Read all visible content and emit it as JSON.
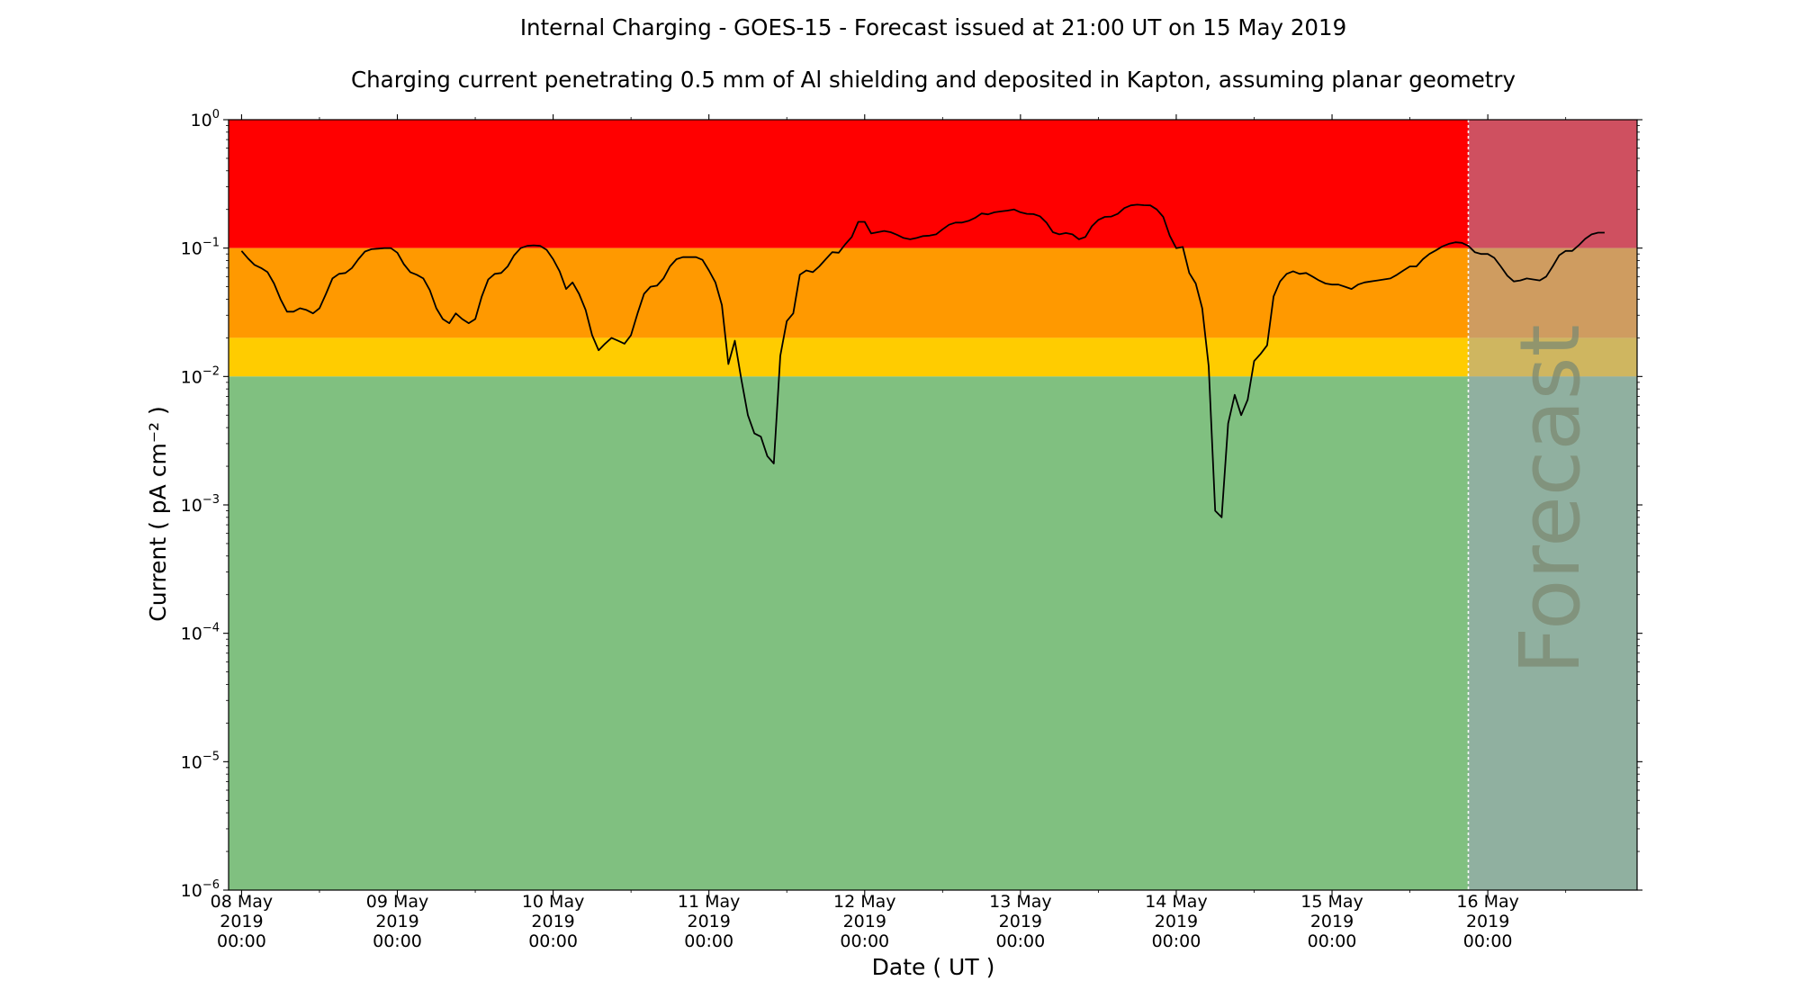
{
  "chart_data": {
    "type": "line",
    "title": "Internal Charging - GOES-15 - Forecast issued at 21:00 UT on 15 May 2019",
    "subtitle": "Charging current penetrating 0.5 mm of Al shielding and deposited in Kapton, assuming planar geometry",
    "xlabel": "Date ( UT )",
    "ylabel": "Current ( pA cm⁻² )",
    "yscale": "log",
    "ylim": [
      1e-06,
      1
    ],
    "y_ticks": [
      {
        "value": 1,
        "base": "10",
        "exp": "0"
      },
      {
        "value": 0.1,
        "base": "10",
        "exp": "−1"
      },
      {
        "value": 0.01,
        "base": "10",
        "exp": "−2"
      },
      {
        "value": 0.001,
        "base": "10",
        "exp": "−3"
      },
      {
        "value": 0.0001,
        "base": "10",
        "exp": "−4"
      },
      {
        "value": 1e-05,
        "base": "10",
        "exp": "−5"
      },
      {
        "value": 1e-06,
        "base": "10",
        "exp": "−6"
      }
    ],
    "xlim": [
      "2019-05-07 22:00",
      "2019-05-16 23:00"
    ],
    "x_ticks": [
      {
        "value": "2019-05-08 00:00",
        "lines": [
          "08 May",
          "2019",
          "00:00"
        ]
      },
      {
        "value": "2019-05-09 00:00",
        "lines": [
          "09 May",
          "2019",
          "00:00"
        ]
      },
      {
        "value": "2019-05-10 00:00",
        "lines": [
          "10 May",
          "2019",
          "00:00"
        ]
      },
      {
        "value": "2019-05-11 00:00",
        "lines": [
          "11 May",
          "2019",
          "00:00"
        ]
      },
      {
        "value": "2019-05-12 00:00",
        "lines": [
          "12 May",
          "2019",
          "00:00"
        ]
      },
      {
        "value": "2019-05-13 00:00",
        "lines": [
          "13 May",
          "2019",
          "00:00"
        ]
      },
      {
        "value": "2019-05-14 00:00",
        "lines": [
          "14 May",
          "2019",
          "00:00"
        ]
      },
      {
        "value": "2019-05-15 00:00",
        "lines": [
          "15 May",
          "2019",
          "00:00"
        ]
      },
      {
        "value": "2019-05-16 00:00",
        "lines": [
          "16 May",
          "2019",
          "00:00"
        ]
      }
    ],
    "minor_x_ticks": [
      "2019-05-08 12:00",
      "2019-05-09 12:00",
      "2019-05-10 12:00",
      "2019-05-11 12:00",
      "2019-05-12 12:00",
      "2019-05-13 12:00",
      "2019-05-14 12:00",
      "2019-05-15 12:00",
      "2019-05-16 12:00"
    ],
    "bands": [
      {
        "from": 0.1,
        "to": 1,
        "color": "#ff0000"
      },
      {
        "from": 0.02,
        "to": 0.1,
        "color": "#ff9900"
      },
      {
        "from": 0.01,
        "to": 0.02,
        "color": "#ffcc00"
      },
      {
        "from": 1e-06,
        "to": 0.01,
        "color": "#80c080"
      }
    ],
    "forecast_region": {
      "start": "2019-05-15 21:00",
      "end": "2019-05-16 23:00",
      "label": "Forecast",
      "overlay_color": "#a0a0c0"
    },
    "series": [
      {
        "color": "#000000",
        "points": [
          [
            "2019-05-08 00:00",
            0.095
          ],
          [
            "2019-05-08 01:00",
            0.083
          ],
          [
            "2019-05-08 02:00",
            0.074
          ],
          [
            "2019-05-08 03:00",
            0.07
          ],
          [
            "2019-05-08 04:00",
            0.065
          ],
          [
            "2019-05-08 05:00",
            0.053
          ],
          [
            "2019-05-08 06:00",
            0.04
          ],
          [
            "2019-05-08 07:00",
            0.032
          ],
          [
            "2019-05-08 08:00",
            0.032
          ],
          [
            "2019-05-08 09:00",
            0.034
          ],
          [
            "2019-05-08 10:00",
            0.033
          ],
          [
            "2019-05-08 11:00",
            0.031
          ],
          [
            "2019-05-08 12:00",
            0.034
          ],
          [
            "2019-05-08 13:00",
            0.044
          ],
          [
            "2019-05-08 14:00",
            0.058
          ],
          [
            "2019-05-08 15:00",
            0.063
          ],
          [
            "2019-05-08 16:00",
            0.064
          ],
          [
            "2019-05-08 17:00",
            0.07
          ],
          [
            "2019-05-08 18:00",
            0.082
          ],
          [
            "2019-05-08 19:00",
            0.094
          ],
          [
            "2019-05-08 20:00",
            0.098
          ],
          [
            "2019-05-08 21:00",
            0.099
          ],
          [
            "2019-05-08 22:00",
            0.1
          ],
          [
            "2019-05-08 23:00",
            0.1
          ],
          [
            "2019-05-09 00:00",
            0.092
          ],
          [
            "2019-05-09 01:00",
            0.075
          ],
          [
            "2019-05-09 02:00",
            0.065
          ],
          [
            "2019-05-09 03:00",
            0.062
          ],
          [
            "2019-05-09 04:00",
            0.058
          ],
          [
            "2019-05-09 05:00",
            0.047
          ],
          [
            "2019-05-09 06:00",
            0.034
          ],
          [
            "2019-05-09 07:00",
            0.028
          ],
          [
            "2019-05-09 08:00",
            0.026
          ],
          [
            "2019-05-09 09:00",
            0.031
          ],
          [
            "2019-05-09 10:00",
            0.028
          ],
          [
            "2019-05-09 11:00",
            0.026
          ],
          [
            "2019-05-09 12:00",
            0.028
          ],
          [
            "2019-05-09 13:00",
            0.042
          ],
          [
            "2019-05-09 14:00",
            0.057
          ],
          [
            "2019-05-09 15:00",
            0.063
          ],
          [
            "2019-05-09 16:00",
            0.064
          ],
          [
            "2019-05-09 17:00",
            0.072
          ],
          [
            "2019-05-09 18:00",
            0.088
          ],
          [
            "2019-05-09 19:00",
            0.1
          ],
          [
            "2019-05-09 20:00",
            0.104
          ],
          [
            "2019-05-09 21:00",
            0.105
          ],
          [
            "2019-05-09 22:00",
            0.104
          ],
          [
            "2019-05-09 23:00",
            0.097
          ],
          [
            "2019-05-10 00:00",
            0.082
          ],
          [
            "2019-05-10 01:00",
            0.066
          ],
          [
            "2019-05-10 02:00",
            0.048
          ],
          [
            "2019-05-10 03:00",
            0.054
          ],
          [
            "2019-05-10 04:00",
            0.044
          ],
          [
            "2019-05-10 05:00",
            0.033
          ],
          [
            "2019-05-10 06:00",
            0.021
          ],
          [
            "2019-05-10 07:00",
            0.016
          ],
          [
            "2019-05-10 08:00",
            0.018
          ],
          [
            "2019-05-10 09:00",
            0.02
          ],
          [
            "2019-05-10 10:00",
            0.019
          ],
          [
            "2019-05-10 11:00",
            0.018
          ],
          [
            "2019-05-10 12:00",
            0.021
          ],
          [
            "2019-05-10 13:00",
            0.031
          ],
          [
            "2019-05-10 14:00",
            0.044
          ],
          [
            "2019-05-10 15:00",
            0.05
          ],
          [
            "2019-05-10 16:00",
            0.051
          ],
          [
            "2019-05-10 17:00",
            0.058
          ],
          [
            "2019-05-10 18:00",
            0.072
          ],
          [
            "2019-05-10 19:00",
            0.082
          ],
          [
            "2019-05-10 20:00",
            0.085
          ],
          [
            "2019-05-10 21:00",
            0.085
          ],
          [
            "2019-05-10 22:00",
            0.085
          ],
          [
            "2019-05-10 23:00",
            0.081
          ],
          [
            "2019-05-11 00:00",
            0.067
          ],
          [
            "2019-05-11 01:00",
            0.054
          ],
          [
            "2019-05-11 02:00",
            0.036
          ],
          [
            "2019-05-11 03:00",
            0.0125
          ],
          [
            "2019-05-11 04:00",
            0.019
          ],
          [
            "2019-05-11 05:00",
            0.0095
          ],
          [
            "2019-05-11 06:00",
            0.005
          ],
          [
            "2019-05-11 07:00",
            0.0036
          ],
          [
            "2019-05-11 08:00",
            0.0034
          ],
          [
            "2019-05-11 09:00",
            0.0024
          ],
          [
            "2019-05-11 10:00",
            0.0021
          ],
          [
            "2019-05-11 11:00",
            0.0145
          ],
          [
            "2019-05-11 12:00",
            0.027
          ],
          [
            "2019-05-11 13:00",
            0.031
          ],
          [
            "2019-05-11 14:00",
            0.062
          ],
          [
            "2019-05-11 15:00",
            0.067
          ],
          [
            "2019-05-11 16:00",
            0.065
          ],
          [
            "2019-05-11 17:00",
            0.072
          ],
          [
            "2019-05-11 18:00",
            0.082
          ],
          [
            "2019-05-11 19:00",
            0.093
          ],
          [
            "2019-05-11 20:00",
            0.092
          ],
          [
            "2019-05-11 21:00",
            0.107
          ],
          [
            "2019-05-11 22:00",
            0.122
          ],
          [
            "2019-05-11 23:00",
            0.16
          ],
          [
            "2019-05-12 00:00",
            0.16
          ],
          [
            "2019-05-12 01:00",
            0.13
          ],
          [
            "2019-05-12 02:00",
            0.133
          ],
          [
            "2019-05-12 03:00",
            0.136
          ],
          [
            "2019-05-12 04:00",
            0.133
          ],
          [
            "2019-05-12 05:00",
            0.127
          ],
          [
            "2019-05-12 06:00",
            0.12
          ],
          [
            "2019-05-12 07:00",
            0.117
          ],
          [
            "2019-05-12 08:00",
            0.12
          ],
          [
            "2019-05-12 09:00",
            0.124
          ],
          [
            "2019-05-12 10:00",
            0.125
          ],
          [
            "2019-05-12 11:00",
            0.128
          ],
          [
            "2019-05-12 12:00",
            0.14
          ],
          [
            "2019-05-12 13:00",
            0.152
          ],
          [
            "2019-05-12 14:00",
            0.158
          ],
          [
            "2019-05-12 15:00",
            0.158
          ],
          [
            "2019-05-12 16:00",
            0.163
          ],
          [
            "2019-05-12 17:00",
            0.172
          ],
          [
            "2019-05-12 18:00",
            0.186
          ],
          [
            "2019-05-12 19:00",
            0.183
          ],
          [
            "2019-05-12 20:00",
            0.19
          ],
          [
            "2019-05-12 21:00",
            0.193
          ],
          [
            "2019-05-12 22:00",
            0.196
          ],
          [
            "2019-05-12 23:00",
            0.2
          ],
          [
            "2019-05-13 00:00",
            0.19
          ],
          [
            "2019-05-13 01:00",
            0.185
          ],
          [
            "2019-05-13 02:00",
            0.184
          ],
          [
            "2019-05-13 03:00",
            0.177
          ],
          [
            "2019-05-13 04:00",
            0.158
          ],
          [
            "2019-05-13 05:00",
            0.133
          ],
          [
            "2019-05-13 06:00",
            0.128
          ],
          [
            "2019-05-13 07:00",
            0.131
          ],
          [
            "2019-05-13 08:00",
            0.128
          ],
          [
            "2019-05-13 09:00",
            0.117
          ],
          [
            "2019-05-13 10:00",
            0.122
          ],
          [
            "2019-05-13 11:00",
            0.148
          ],
          [
            "2019-05-13 12:00",
            0.166
          ],
          [
            "2019-05-13 13:00",
            0.175
          ],
          [
            "2019-05-13 14:00",
            0.176
          ],
          [
            "2019-05-13 15:00",
            0.185
          ],
          [
            "2019-05-13 16:00",
            0.205
          ],
          [
            "2019-05-13 17:00",
            0.215
          ],
          [
            "2019-05-13 18:00",
            0.218
          ],
          [
            "2019-05-13 19:00",
            0.216
          ],
          [
            "2019-05-13 20:00",
            0.215
          ],
          [
            "2019-05-13 21:00",
            0.2
          ],
          [
            "2019-05-13 22:00",
            0.175
          ],
          [
            "2019-05-13 23:00",
            0.125
          ],
          [
            "2019-05-14 00:00",
            0.1
          ],
          [
            "2019-05-14 01:00",
            0.102
          ],
          [
            "2019-05-14 02:00",
            0.064
          ],
          [
            "2019-05-14 03:00",
            0.053
          ],
          [
            "2019-05-14 04:00",
            0.034
          ],
          [
            "2019-05-14 05:00",
            0.012
          ],
          [
            "2019-05-14 06:00",
            0.0009
          ],
          [
            "2019-05-14 07:00",
            0.0008
          ],
          [
            "2019-05-14 08:00",
            0.0043
          ],
          [
            "2019-05-14 09:00",
            0.0072
          ],
          [
            "2019-05-14 10:00",
            0.005
          ],
          [
            "2019-05-14 11:00",
            0.0066
          ],
          [
            "2019-05-14 12:00",
            0.0132
          ],
          [
            "2019-05-14 13:00",
            0.015
          ],
          [
            "2019-05-14 14:00",
            0.0175
          ],
          [
            "2019-05-14 15:00",
            0.042
          ],
          [
            "2019-05-14 16:00",
            0.055
          ],
          [
            "2019-05-14 17:00",
            0.063
          ],
          [
            "2019-05-14 18:00",
            0.066
          ],
          [
            "2019-05-14 19:00",
            0.063
          ],
          [
            "2019-05-14 20:00",
            0.064
          ],
          [
            "2019-05-14 21:00",
            0.06
          ],
          [
            "2019-05-14 22:00",
            0.056
          ],
          [
            "2019-05-14 23:00",
            0.053
          ],
          [
            "2019-05-15 00:00",
            0.052
          ],
          [
            "2019-05-15 01:00",
            0.052
          ],
          [
            "2019-05-15 02:00",
            0.05
          ],
          [
            "2019-05-15 03:00",
            0.048
          ],
          [
            "2019-05-15 04:00",
            0.052
          ],
          [
            "2019-05-15 05:00",
            0.054
          ],
          [
            "2019-05-15 06:00",
            0.055
          ],
          [
            "2019-05-15 07:00",
            0.056
          ],
          [
            "2019-05-15 08:00",
            0.057
          ],
          [
            "2019-05-15 09:00",
            0.058
          ],
          [
            "2019-05-15 10:00",
            0.062
          ],
          [
            "2019-05-15 11:00",
            0.067
          ],
          [
            "2019-05-15 12:00",
            0.072
          ],
          [
            "2019-05-15 13:00",
            0.072
          ],
          [
            "2019-05-15 14:00",
            0.082
          ],
          [
            "2019-05-15 15:00",
            0.09
          ],
          [
            "2019-05-15 16:00",
            0.096
          ],
          [
            "2019-05-15 17:00",
            0.103
          ],
          [
            "2019-05-15 18:00",
            0.108
          ],
          [
            "2019-05-15 19:00",
            0.111
          ],
          [
            "2019-05-15 20:00",
            0.11
          ],
          [
            "2019-05-15 21:00",
            0.104
          ],
          [
            "2019-05-15 22:00",
            0.093
          ],
          [
            "2019-05-15 23:00",
            0.09
          ],
          [
            "2019-05-16 00:00",
            0.09
          ],
          [
            "2019-05-16 01:00",
            0.084
          ],
          [
            "2019-05-16 02:00",
            0.072
          ],
          [
            "2019-05-16 03:00",
            0.061
          ],
          [
            "2019-05-16 04:00",
            0.055
          ],
          [
            "2019-05-16 05:00",
            0.056
          ],
          [
            "2019-05-16 06:00",
            0.058
          ],
          [
            "2019-05-16 07:00",
            0.057
          ],
          [
            "2019-05-16 08:00",
            0.056
          ],
          [
            "2019-05-16 09:00",
            0.06
          ],
          [
            "2019-05-16 10:00",
            0.072
          ],
          [
            "2019-05-16 11:00",
            0.088
          ],
          [
            "2019-05-16 12:00",
            0.095
          ],
          [
            "2019-05-16 13:00",
            0.095
          ],
          [
            "2019-05-16 14:00",
            0.105
          ],
          [
            "2019-05-16 15:00",
            0.118
          ],
          [
            "2019-05-16 16:00",
            0.128
          ],
          [
            "2019-05-16 17:00",
            0.132
          ],
          [
            "2019-05-16 18:00",
            0.132
          ]
        ]
      }
    ],
    "grid": false,
    "legend": "none"
  }
}
